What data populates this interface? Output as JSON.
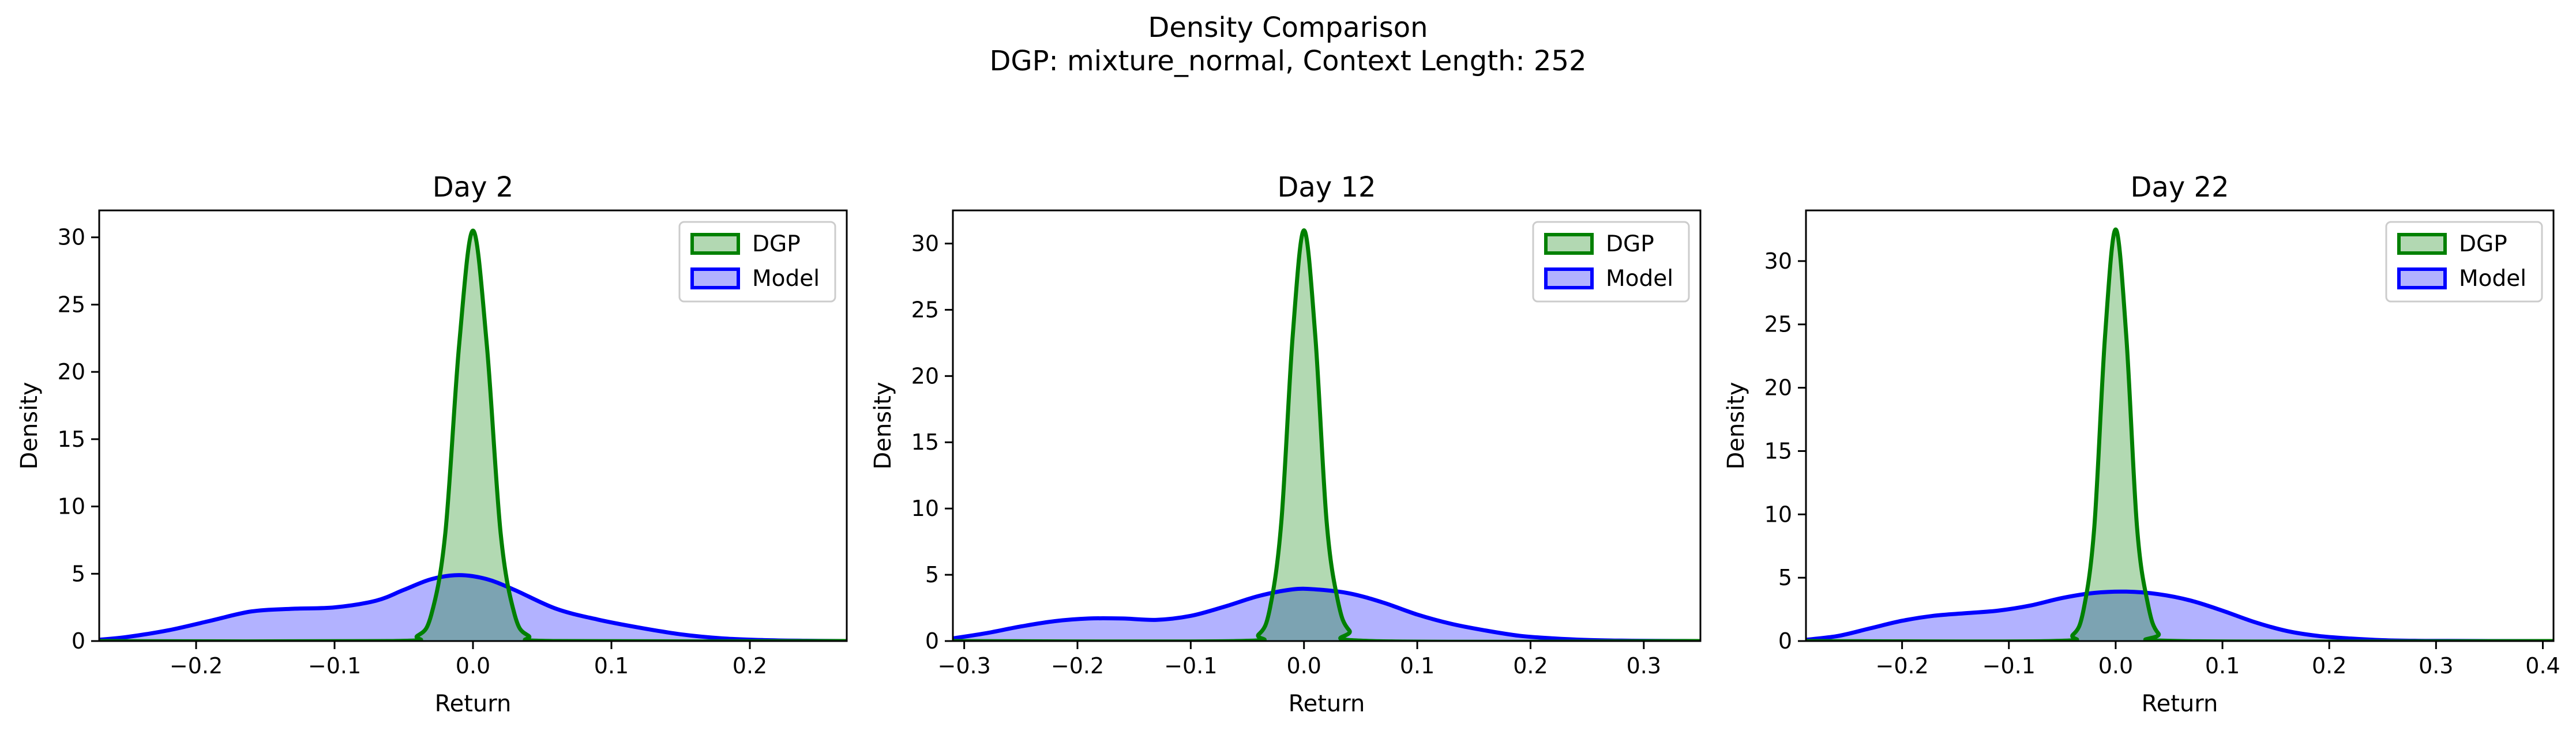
{
  "figure": {
    "title_line1": "Density Comparison",
    "title_line2": "DGP: mixture_normal, Context Length: 252"
  },
  "colors": {
    "dgp_line": "#008000",
    "dgp_fill": "#b2d8b2",
    "model_line": "#0000ff",
    "model_fill": "#b2b2ff",
    "overlap": "#5f8fb5"
  },
  "chart_data": [
    {
      "type": "area",
      "title": "Day 2",
      "xlabel": "Return",
      "ylabel": "Density",
      "xlim": [
        -0.27,
        0.27
      ],
      "ylim": [
        0,
        32
      ],
      "xticks": [
        -0.2,
        -0.1,
        0.0,
        0.1,
        0.2
      ],
      "xtick_labels": [
        "−0.2",
        "−0.1",
        "0.0",
        "0.1",
        "0.2"
      ],
      "yticks": [
        0,
        5,
        10,
        15,
        20,
        25,
        30
      ],
      "ytick_labels": [
        "0",
        "5",
        "10",
        "15",
        "20",
        "25",
        "30"
      ],
      "legend_position": "top-right",
      "series": [
        {
          "name": "DGP",
          "x": [
            -0.27,
            -0.06,
            -0.04,
            -0.03,
            -0.02,
            -0.01,
            0.0,
            0.01,
            0.02,
            0.03,
            0.04,
            0.06,
            0.27
          ],
          "y": [
            0,
            0,
            0.4,
            2,
            8,
            22,
            30.5,
            22,
            8,
            2,
            0.4,
            0,
            0
          ]
        },
        {
          "name": "Model",
          "x": [
            -0.27,
            -0.25,
            -0.22,
            -0.19,
            -0.16,
            -0.13,
            -0.1,
            -0.07,
            -0.05,
            -0.03,
            -0.01,
            0.01,
            0.03,
            0.06,
            0.09,
            0.12,
            0.15,
            0.18,
            0.21,
            0.24,
            0.27
          ],
          "y": [
            0.1,
            0.3,
            0.8,
            1.5,
            2.2,
            2.4,
            2.5,
            3.0,
            3.8,
            4.6,
            4.9,
            4.6,
            3.8,
            2.4,
            1.6,
            1.0,
            0.5,
            0.2,
            0.07,
            0.02,
            0.0
          ]
        }
      ]
    },
    {
      "type": "area",
      "title": "Day 12",
      "xlabel": "Return",
      "ylabel": "Density",
      "xlim": [
        -0.31,
        0.35
      ],
      "ylim": [
        0,
        32.5
      ],
      "xticks": [
        -0.3,
        -0.2,
        -0.1,
        0.0,
        0.1,
        0.2,
        0.3
      ],
      "xtick_labels": [
        "−0.3",
        "−0.2",
        "−0.1",
        "0.0",
        "0.1",
        "0.2",
        "0.3"
      ],
      "yticks": [
        0,
        5,
        10,
        15,
        20,
        25,
        30
      ],
      "ytick_labels": [
        "0",
        "5",
        "10",
        "15",
        "20",
        "25",
        "30"
      ],
      "legend_position": "top-right",
      "series": [
        {
          "name": "DGP",
          "x": [
            -0.31,
            -0.06,
            -0.04,
            -0.03,
            -0.02,
            -0.01,
            0.0,
            0.01,
            0.02,
            0.03,
            0.04,
            0.06,
            0.35
          ],
          "y": [
            0,
            0,
            0.5,
            2.5,
            9,
            23,
            31,
            23,
            9,
            3,
            0.8,
            0,
            0
          ]
        },
        {
          "name": "Model",
          "x": [
            -0.31,
            -0.28,
            -0.25,
            -0.22,
            -0.19,
            -0.16,
            -0.13,
            -0.1,
            -0.07,
            -0.04,
            -0.01,
            0.01,
            0.04,
            0.07,
            0.1,
            0.13,
            0.16,
            0.19,
            0.22,
            0.25,
            0.28,
            0.31,
            0.35
          ],
          "y": [
            0.2,
            0.6,
            1.1,
            1.5,
            1.7,
            1.7,
            1.6,
            1.9,
            2.6,
            3.4,
            3.9,
            3.9,
            3.6,
            2.9,
            2.0,
            1.3,
            0.8,
            0.4,
            0.2,
            0.08,
            0.03,
            0.01,
            0.0
          ]
        }
      ]
    },
    {
      "type": "area",
      "title": "Day 22",
      "xlabel": "Return",
      "ylabel": "Density",
      "xlim": [
        -0.29,
        0.41
      ],
      "ylim": [
        0,
        34
      ],
      "xticks": [
        -0.2,
        -0.1,
        0.0,
        0.1,
        0.2,
        0.3,
        0.4
      ],
      "xtick_labels": [
        "−0.2",
        "−0.1",
        "0.0",
        "0.1",
        "0.2",
        "0.3",
        "0.4"
      ],
      "yticks": [
        0,
        5,
        10,
        15,
        20,
        25,
        30
      ],
      "ytick_labels": [
        "0",
        "5",
        "10",
        "15",
        "20",
        "25",
        "30"
      ],
      "legend_position": "top-right",
      "series": [
        {
          "name": "DGP",
          "x": [
            -0.29,
            -0.06,
            -0.04,
            -0.03,
            -0.02,
            -0.01,
            0.0,
            0.01,
            0.02,
            0.03,
            0.04,
            0.06,
            0.41
          ],
          "y": [
            0,
            0,
            0.5,
            2.5,
            9,
            24,
            32.5,
            24,
            9,
            3,
            0.6,
            0,
            0
          ]
        },
        {
          "name": "Model",
          "x": [
            -0.29,
            -0.26,
            -0.23,
            -0.2,
            -0.17,
            -0.14,
            -0.11,
            -0.08,
            -0.05,
            -0.02,
            0.01,
            0.04,
            0.07,
            0.1,
            0.13,
            0.16,
            0.19,
            0.22,
            0.25,
            0.28,
            0.31,
            0.35,
            0.41
          ],
          "y": [
            0.1,
            0.4,
            1.0,
            1.6,
            2.0,
            2.2,
            2.4,
            2.8,
            3.4,
            3.8,
            3.9,
            3.7,
            3.2,
            2.4,
            1.5,
            0.8,
            0.4,
            0.2,
            0.07,
            0.02,
            0.01,
            0.0,
            0.0
          ]
        }
      ]
    }
  ]
}
